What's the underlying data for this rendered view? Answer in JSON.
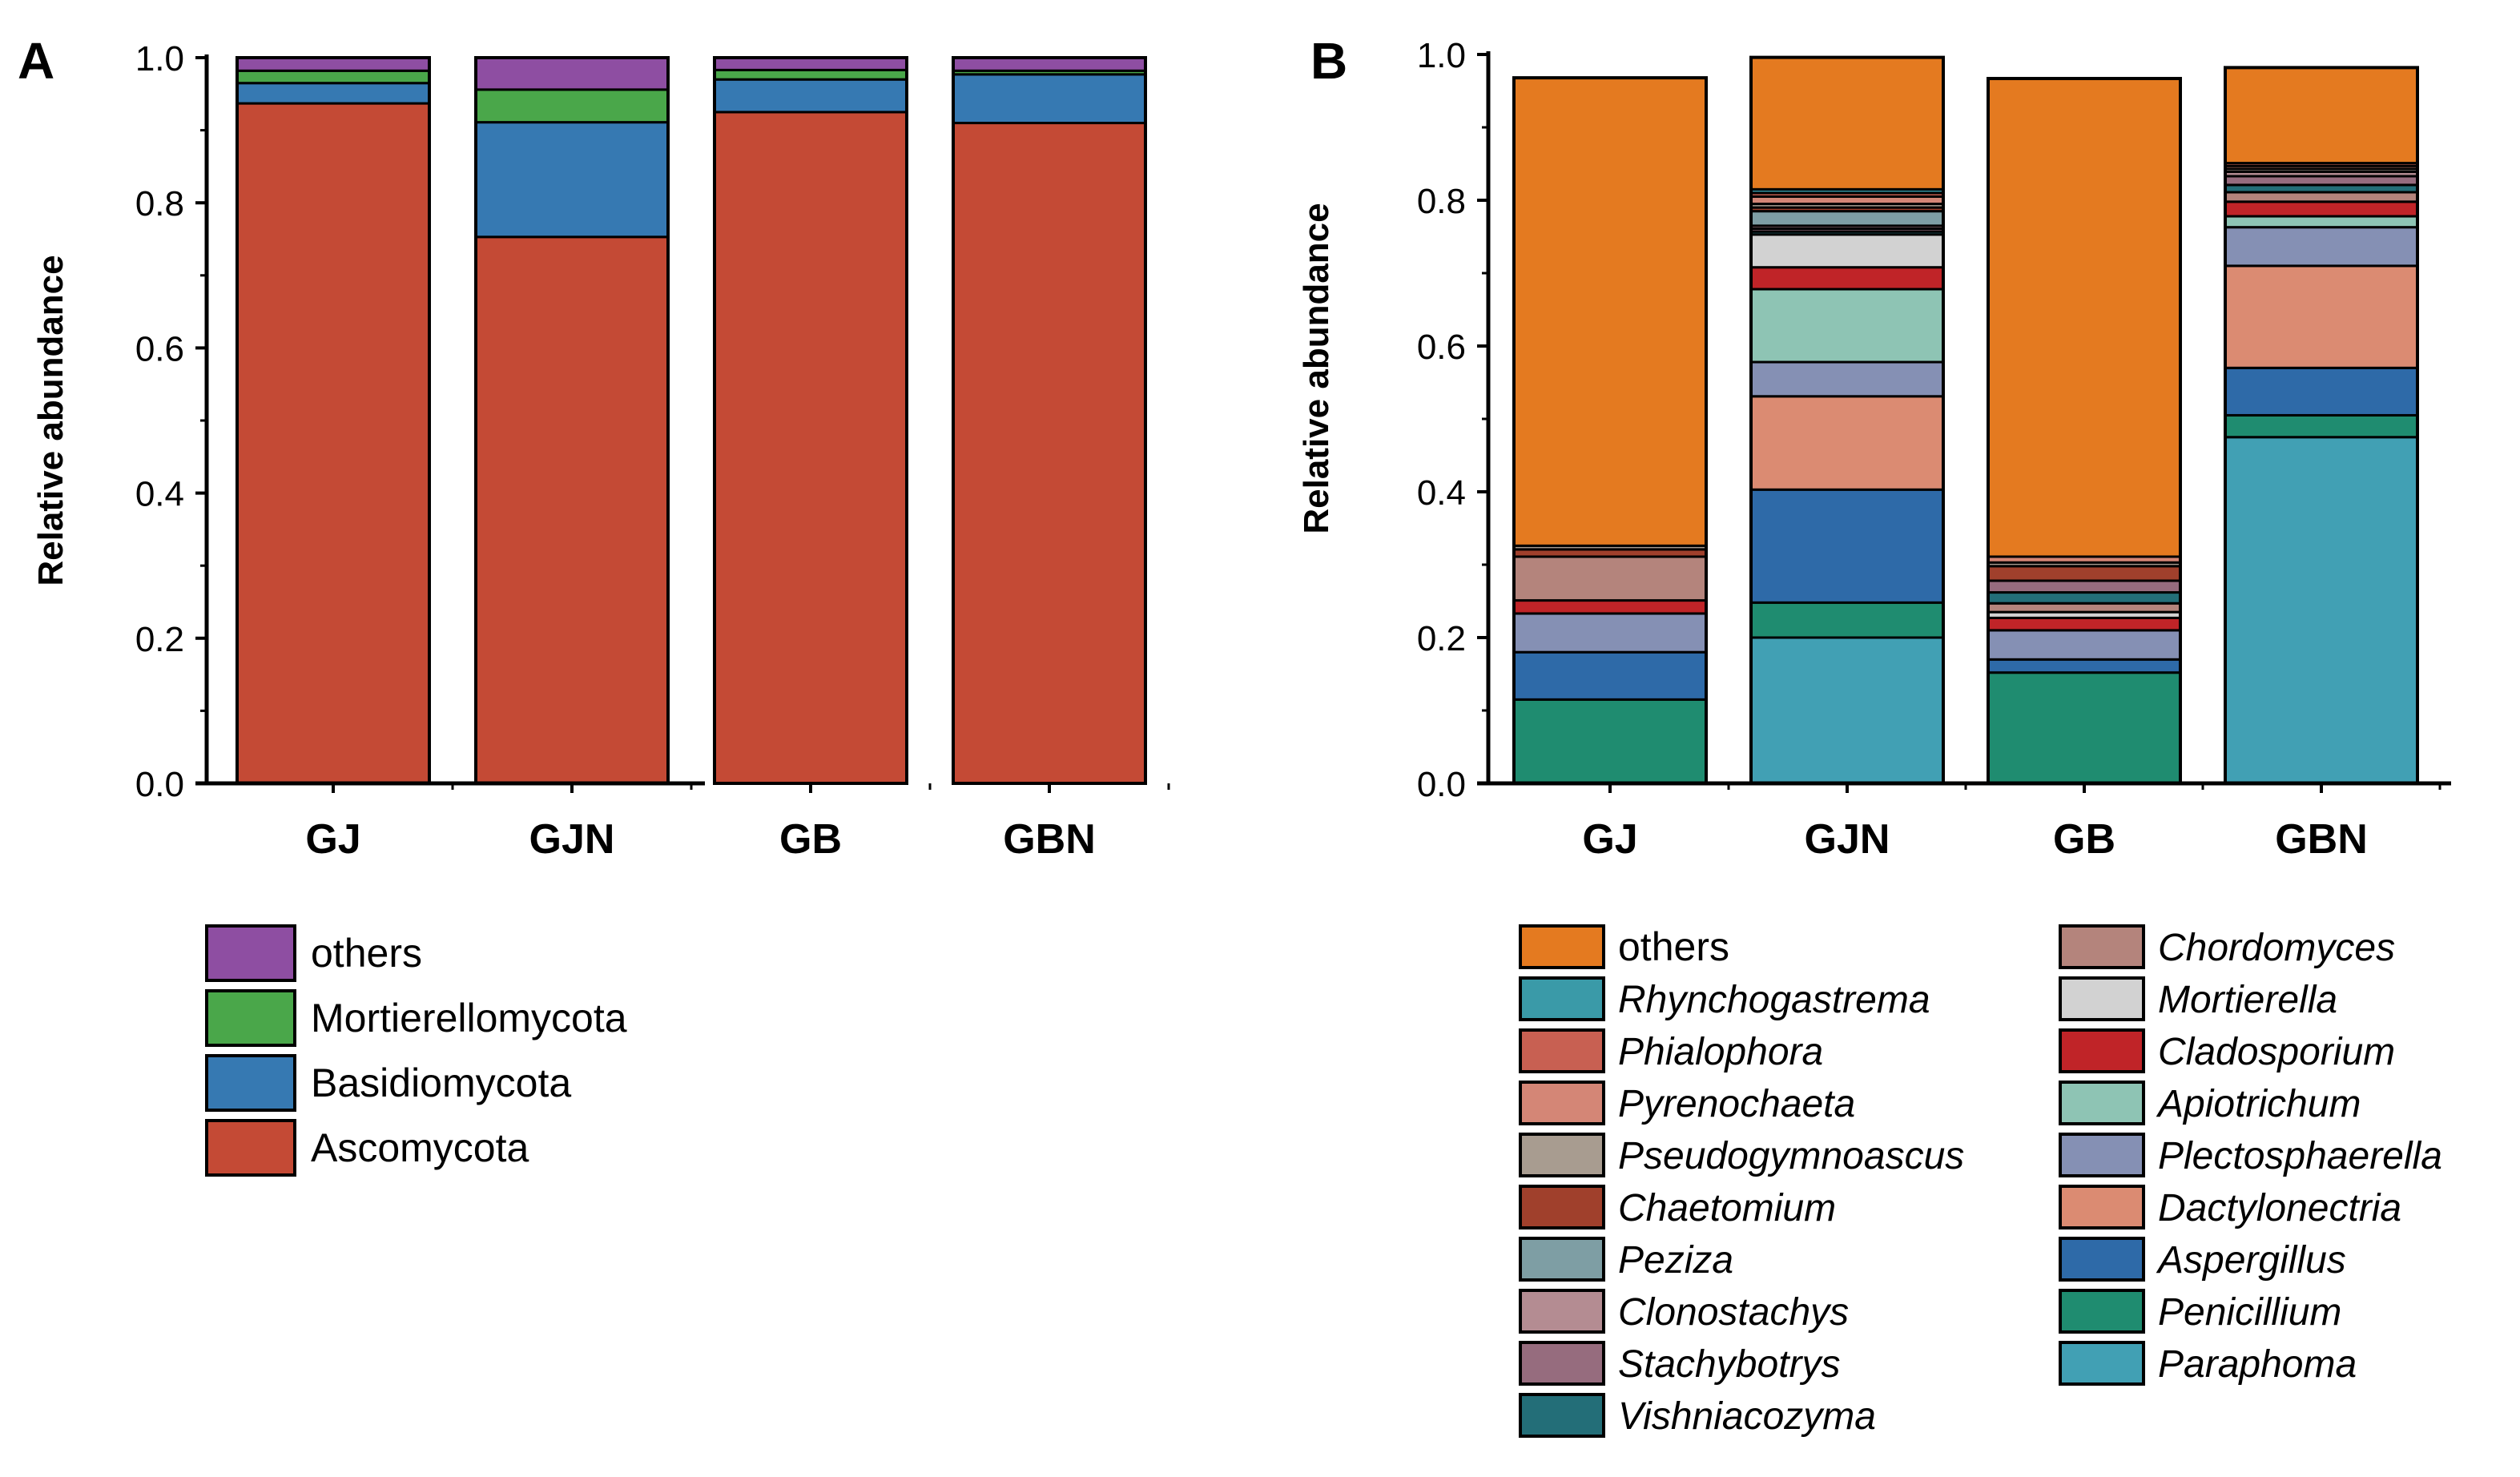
{
  "chart_data": [
    {
      "type": "bar",
      "stacked": true,
      "panel_label": "A",
      "ylabel": "Relative abundance",
      "xlabel": "",
      "ylim": [
        0,
        1.0
      ],
      "yticks": [
        "0.0",
        "0.2",
        "0.4",
        "0.6",
        "0.8",
        "1.0"
      ],
      "categories": [
        "GJ",
        "GJN",
        "GB",
        "GBN"
      ],
      "series": [
        {
          "name": "Ascomycota",
          "color": "#c44a35",
          "values": [
            0.937,
            0.753,
            0.925,
            0.91
          ]
        },
        {
          "name": "Basidiomycota",
          "color": "#3679b2",
          "values": [
            0.028,
            0.158,
            0.045,
            0.067
          ]
        },
        {
          "name": "Mortierellomycota",
          "color": "#4aa74a",
          "values": [
            0.017,
            0.045,
            0.013,
            0.005
          ]
        },
        {
          "name": "others",
          "color": "#8e4ea2",
          "values": [
            0.018,
            0.044,
            0.017,
            0.018
          ]
        }
      ],
      "legend_order": [
        "others",
        "Mortierellomycota",
        "Basidiomycota",
        "Ascomycota"
      ]
    },
    {
      "type": "bar",
      "stacked": true,
      "panel_label": "B",
      "ylabel": "Relative abundance",
      "xlabel": "",
      "ylim": [
        0,
        1.0
      ],
      "yticks": [
        "0.0",
        "0.2",
        "0.4",
        "0.6",
        "0.8",
        "1.0"
      ],
      "categories": [
        "GJ",
        "GJN",
        "GB",
        "GBN"
      ],
      "series": [
        {
          "name": "Paraphoma",
          "color": "#41a0b4",
          "values": [
            0.0,
            0.2,
            0.0,
            0.475
          ]
        },
        {
          "name": "Penicillium",
          "color": "#1f8c70",
          "values": [
            0.115,
            0.048,
            0.152,
            0.03
          ]
        },
        {
          "name": "Aspergillus",
          "color": "#2e6aa8",
          "values": [
            0.065,
            0.155,
            0.018,
            0.065
          ]
        },
        {
          "name": "Dactylonectria",
          "color": "#db8b72",
          "values": [
            0.0,
            0.128,
            0.0,
            0.14
          ]
        },
        {
          "name": "Plectosphaerella",
          "color": "#8590b4",
          "values": [
            0.053,
            0.047,
            0.04,
            0.053
          ]
        },
        {
          "name": "Apiotrichum",
          "color": "#8ec4b4",
          "values": [
            0.0,
            0.1,
            0.0,
            0.015
          ]
        },
        {
          "name": "Cladosporium",
          "color": "#c02428",
          "values": [
            0.018,
            0.03,
            0.017,
            0.02
          ]
        },
        {
          "name": "Mortierella",
          "color": "#d2d2d2",
          "values": [
            0.0,
            0.045,
            0.008,
            0.0
          ]
        },
        {
          "name": "Chordomyces",
          "color": "#b4847c",
          "values": [
            0.06,
            0.0,
            0.012,
            0.013
          ]
        },
        {
          "name": "Vishniacozyma",
          "color": "#236e78",
          "values": [
            0.0,
            0.004,
            0.015,
            0.01
          ]
        },
        {
          "name": "Stachybotrys",
          "color": "#966c7e",
          "values": [
            0.0,
            0.004,
            0.016,
            0.012
          ]
        },
        {
          "name": "Clonostachys",
          "color": "#b48c92",
          "values": [
            0.0,
            0.004,
            0.0,
            0.006
          ]
        },
        {
          "name": "Peziza",
          "color": "#7e9ea4",
          "values": [
            0.0,
            0.02,
            0.0,
            0.0
          ]
        },
        {
          "name": "Chaetomium",
          "color": "#a0402c",
          "values": [
            0.01,
            0.005,
            0.02,
            0.0
          ]
        },
        {
          "name": "Pseudogymnoascus",
          "color": "#a89c90",
          "values": [
            0.005,
            0.005,
            0.005,
            0.004
          ]
        },
        {
          "name": "Pyrenochaeta",
          "color": "#d48676",
          "values": [
            0.0,
            0.01,
            0.008,
            0.004
          ]
        },
        {
          "name": "Phialophora",
          "color": "#c86052",
          "values": [
            0.0,
            0.005,
            0.0,
            0.004
          ]
        },
        {
          "name": "Rhynchogastrema",
          "color": "#3a9aa8",
          "values": [
            0.0,
            0.005,
            0.0,
            0.0
          ]
        },
        {
          "name": "others",
          "color": "#e47a20",
          "values": [
            0.642,
            0.181,
            0.656,
            0.131
          ]
        }
      ],
      "legend_columns": [
        [
          "others",
          "Rhynchogastrema",
          "Phialophora",
          "Pyrenochaeta",
          "Pseudogymnoascus",
          "Chaetomium",
          "Peziza",
          "Clonostachys",
          "Stachybotrys",
          "Vishniacozyma"
        ],
        [
          "Chordomyces",
          "Mortierella",
          "Cladosporium",
          "Apiotrichum",
          "Plectosphaerella",
          "Dactylonectria",
          "Aspergillus",
          "Penicillium",
          "Paraphoma"
        ]
      ]
    }
  ]
}
